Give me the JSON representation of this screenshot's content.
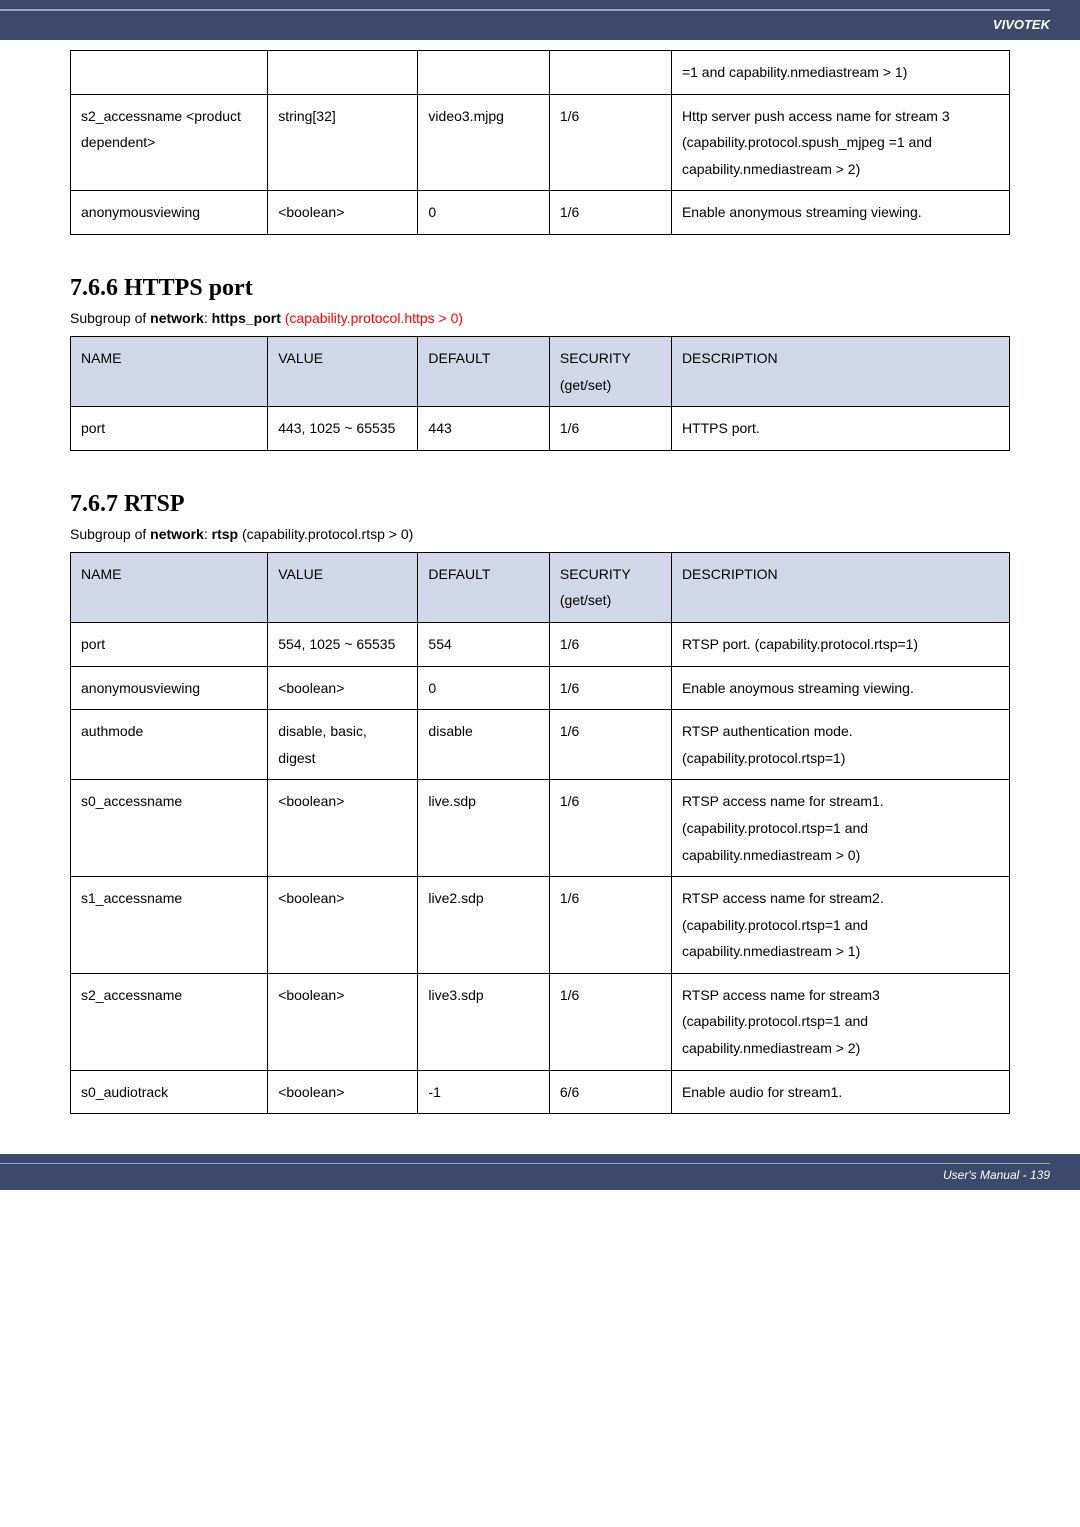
{
  "header": {
    "brand": "VIVOTEK"
  },
  "footer": {
    "text": "User's Manual - 139"
  },
  "table1": {
    "rows": [
      {
        "c0": "",
        "c1": "",
        "c2": "",
        "c3": "",
        "c4": "=1 and capability.nmediastream > 1)"
      },
      {
        "c0": "s2_accessname <product dependent>",
        "c1": "string[32]",
        "c2": "video3.mjpg",
        "c3": "1/6",
        "c4": "Http server push access name for stream 3 (capability.protocol.spush_mjpeg =1 and capability.nmediastream > 2)"
      },
      {
        "c0": "anonymousviewing",
        "c1": "<boolean>",
        "c2": "0",
        "c3": "1/6",
        "c4": "Enable anonymous streaming viewing."
      }
    ]
  },
  "section_https": {
    "heading": "7.6.6 HTTPS port",
    "subgroup_prefix": "Subgroup of ",
    "subgroup_bold1": "network",
    "subgroup_mid": ": ",
    "subgroup_bold2": "https_port",
    "subgroup_suffix": " (capability.protocol.https > 0)",
    "headers": {
      "name": "NAME",
      "value": "VALUE",
      "def": "DEFAULT",
      "sec": "SECURITY (get/set)",
      "desc": "DESCRIPTION"
    },
    "rows": [
      {
        "c0": "port",
        "c1": "443, 1025 ~ 65535",
        "c2": "443",
        "c3": "1/6",
        "c4": "HTTPS port."
      }
    ]
  },
  "section_rtsp": {
    "heading": "7.6.7 RTSP",
    "subgroup_prefix": "Subgroup of ",
    "subgroup_bold1": "network",
    "subgroup_mid": ": ",
    "subgroup_bold2": "rtsp",
    "subgroup_suffix": " (capability.protocol.rtsp > 0)",
    "headers": {
      "name": "NAME",
      "value": "VALUE",
      "def": "DEFAULT",
      "sec": "SECURITY (get/set)",
      "desc": "DESCRIPTION"
    },
    "rows": [
      {
        "c0": "port",
        "c1": "554, 1025 ~ 65535",
        "c2": "554",
        "c3": "1/6",
        "c4": "RTSP port. (capability.protocol.rtsp=1)"
      },
      {
        "c0": "anonymousviewing",
        "c1": "<boolean>",
        "c2": "0",
        "c3": "1/6",
        "c4": "Enable anoymous streaming viewing."
      },
      {
        "c0": "authmode",
        "c1": "disable, basic, digest",
        "c2": "disable",
        "c3": "1/6",
        "c4": "RTSP authentication mode. (capability.protocol.rtsp=1)"
      },
      {
        "c0": "s0_accessname",
        "c1": "<boolean>",
        "c2": "live.sdp",
        "c3": "1/6",
        "c4": "RTSP access name for stream1. (capability.protocol.rtsp=1 and capability.nmediastream > 0)"
      },
      {
        "c0": "s1_accessname",
        "c1": "<boolean>",
        "c2": "live2.sdp",
        "c3": "1/6",
        "c4": "RTSP access name for stream2. (capability.protocol.rtsp=1 and capability.nmediastream > 1)"
      },
      {
        "c0": "s2_accessname",
        "c1": "<boolean>",
        "c2": "live3.sdp",
        "c3": "1/6",
        "c4": "RTSP access name for stream3 (capability.protocol.rtsp=1 and capability.nmediastream > 2)"
      },
      {
        "c0": "s0_audiotrack",
        "c1": "<boolean>",
        "c2": "-1",
        "c3": "6/6",
        "c4": "Enable audio for stream1."
      }
    ]
  }
}
